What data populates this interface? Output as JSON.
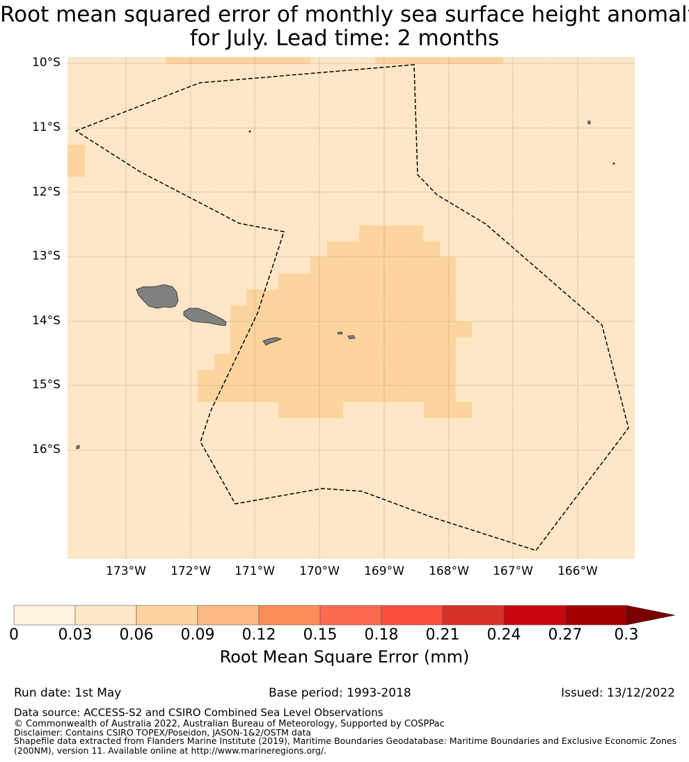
{
  "title_line1": "Root mean squared error of monthly sea surface height anomaly",
  "title_line2": "for July. Lead time: 2 months",
  "map": {
    "lat_labels": [
      "10°S",
      "11°S",
      "12°S",
      "13°S",
      "14°S",
      "15°S",
      "16°S"
    ],
    "lon_labels": [
      "173°W",
      "172°W",
      "171°W",
      "170°W",
      "169°W",
      "168°W",
      "167°W",
      "166°W"
    ],
    "background_color": "#fee6c7",
    "anomaly_color": "#fdd49e",
    "land_color": "#808080"
  },
  "colorbar": {
    "ticks": [
      "0",
      "0.03",
      "0.06",
      "0.09",
      "0.12",
      "0.15",
      "0.18",
      "0.21",
      "0.24",
      "0.27",
      "0.3"
    ],
    "colors": [
      "#fff2df",
      "#fee6c7",
      "#fdd49e",
      "#fdbb84",
      "#fc8d59",
      "#fc6a4f",
      "#fb4e3c",
      "#d73027",
      "#c9070f",
      "#a50000"
    ],
    "extend_color": "#7a0000",
    "label": "Root Mean Square Error (mm)"
  },
  "footer": {
    "run_date": "Run date: 1st May",
    "base_period": "Base period: 1993-2018",
    "issued": "Issued: 13/12/2022",
    "data_source": "Data source: ACCESS-S2 and CSIRO Combined Sea Level Observations",
    "copyright": "© Commonwealth of Australia 2022, Australian Bureau of Meteorology, Supported by COSPPac",
    "disclaimer": "Disclaimer: Contains CSIRO TOPEX/Poseidon, JASON-1&2/OSTM data",
    "shapefile1": "Shapefile data extracted from Flanders Marine Institute (2019), Maritime Boundaries Geodatabase: Maritime Boundaries and Exclusive Economic Zones",
    "shapefile2": "(200NM), version 11. Available online at http://www.marineregions.org/."
  }
}
